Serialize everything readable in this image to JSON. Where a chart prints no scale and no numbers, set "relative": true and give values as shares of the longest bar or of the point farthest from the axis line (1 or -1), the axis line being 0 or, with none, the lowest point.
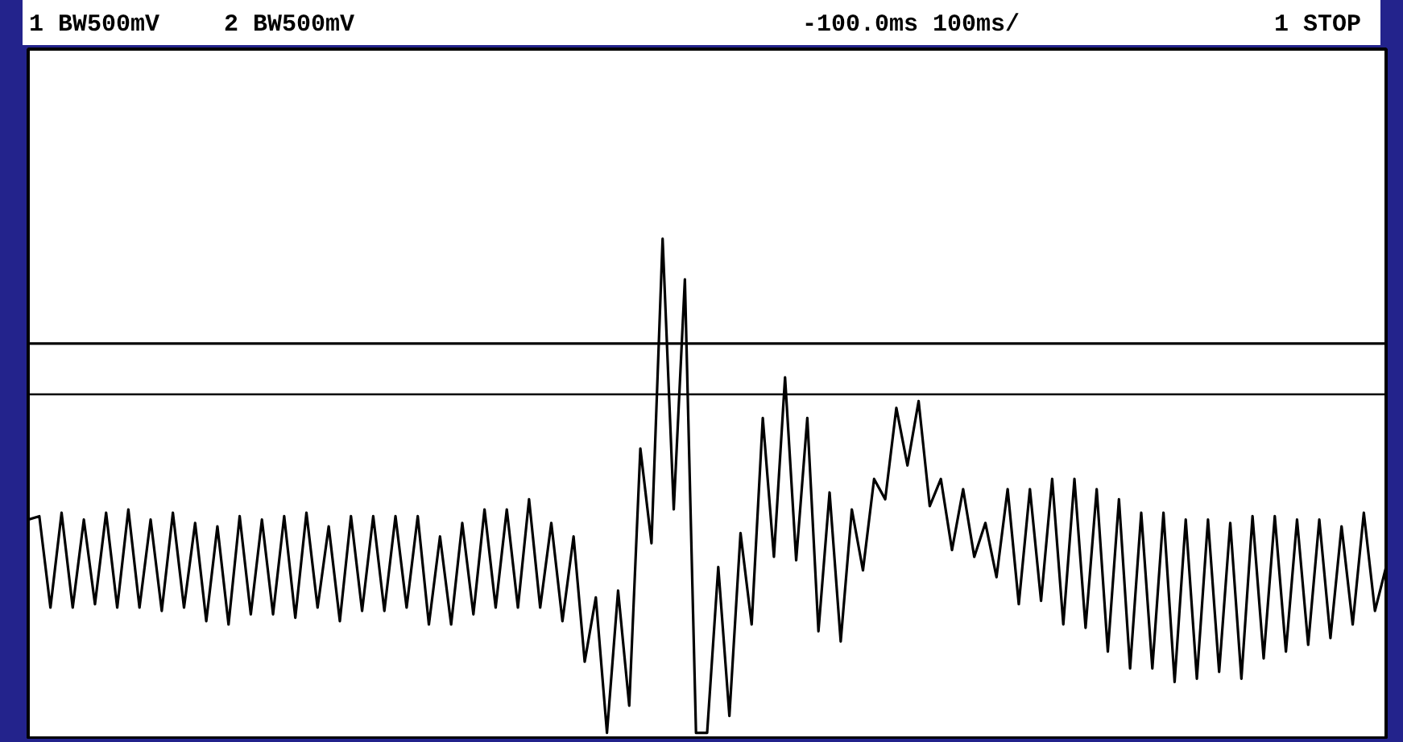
{
  "chart_data": {
    "type": "line",
    "relative": true,
    "tick_labels": false,
    "marker": "none",
    "line_style": "solid",
    "annotations": [
      "1 BW500mV",
      "2 BW500mV",
      "-100.0ms 100ms/",
      "1 STOP"
    ],
    "categories": [
      null,
      null,
      null,
      null,
      null,
      null,
      null,
      null,
      null,
      null,
      null,
      null,
      null,
      null,
      null,
      null,
      null,
      null,
      null,
      null,
      null,
      null,
      null,
      null,
      null,
      null,
      null,
      null,
      null,
      null,
      null,
      null,
      null,
      null,
      null,
      null,
      null,
      null,
      null,
      null,
      null,
      null,
      null,
      null,
      null,
      null,
      null,
      null,
      null,
      null,
      null,
      null,
      null,
      null,
      null,
      null,
      null,
      null,
      null,
      null,
      null,
      null,
      null,
      null,
      null,
      null,
      null,
      null,
      null,
      null,
      null,
      null,
      null,
      null,
      null,
      null,
      null,
      null,
      null,
      null,
      null,
      null,
      null,
      null,
      null,
      null,
      null,
      null,
      null,
      null,
      null,
      null,
      null,
      null,
      null,
      null,
      null,
      null,
      null,
      null,
      null,
      null,
      null,
      null,
      null,
      null,
      null,
      null,
      null,
      null,
      null,
      null,
      null,
      null,
      null,
      null,
      null,
      null,
      null,
      null,
      null,
      null,
      null
    ],
    "series": [
      {
        "color": "#000000",
        "values": [
          -0.37,
          -0.36,
          -0.63,
          -0.35,
          -0.63,
          -0.37,
          -0.62,
          -0.35,
          -0.63,
          -0.34,
          -0.63,
          -0.37,
          -0.64,
          -0.35,
          -0.63,
          -0.38,
          -0.67,
          -0.39,
          -0.68,
          -0.36,
          -0.65,
          -0.37,
          -0.65,
          -0.36,
          -0.66,
          -0.35,
          -0.63,
          -0.39,
          -0.67,
          -0.36,
          -0.64,
          -0.36,
          -0.64,
          -0.36,
          -0.63,
          -0.36,
          -0.68,
          -0.42,
          -0.68,
          -0.38,
          -0.65,
          -0.34,
          -0.63,
          -0.34,
          -0.63,
          -0.31,
          -0.63,
          -0.38,
          -0.67,
          -0.42,
          -0.79,
          -0.6,
          -1.0,
          -0.58,
          -0.92,
          -0.16,
          -0.44,
          0.46,
          -0.34,
          0.34,
          -1.0,
          -1.0,
          -0.51,
          -0.95,
          -0.41,
          -0.68,
          -0.07,
          -0.48,
          0.05,
          -0.49,
          -0.07,
          -0.7,
          -0.29,
          -0.73,
          -0.34,
          -0.52,
          -0.25,
          -0.31,
          -0.04,
          -0.21,
          -0.02,
          -0.33,
          -0.25,
          -0.46,
          -0.28,
          -0.48,
          -0.38,
          -0.54,
          -0.28,
          -0.62,
          -0.28,
          -0.61,
          -0.25,
          -0.68,
          -0.25,
          -0.69,
          -0.28,
          -0.76,
          -0.31,
          -0.81,
          -0.35,
          -0.81,
          -0.35,
          -0.85,
          -0.37,
          -0.84,
          -0.37,
          -0.82,
          -0.38,
          -0.84,
          -0.36,
          -0.78,
          -0.36,
          -0.76,
          -0.37,
          -0.74,
          -0.37,
          -0.72,
          -0.39,
          -0.68,
          -0.35,
          -0.64,
          -0.51
        ]
      },
      {
        "color": "#000000",
        "values": [
          0.15,
          0.15,
          0.15,
          0.15,
          0.15,
          0.15,
          0.15,
          0.15,
          0.15,
          0.15,
          0.15,
          0.15,
          0.15,
          0.15,
          0.15,
          0.15,
          0.15,
          0.15,
          0.15,
          0.15,
          0.15,
          0.15,
          0.15,
          0.15,
          0.15,
          0.15,
          0.15,
          0.15,
          0.15,
          0.15,
          0.15,
          0.15,
          0.15,
          0.15,
          0.15,
          0.15,
          0.15,
          0.15,
          0.15,
          0.15,
          0.15,
          0.15,
          0.15,
          0.15,
          0.15,
          0.15,
          0.15,
          0.15,
          0.15,
          0.15,
          0.15,
          0.15,
          0.15,
          0.15,
          0.15,
          0.15,
          0.15,
          0.15,
          0.15,
          0.15,
          0.15,
          0.15,
          0.15,
          0.15,
          0.15,
          0.15,
          0.15,
          0.15,
          0.15,
          0.15,
          0.15,
          0.15,
          0.15,
          0.15,
          0.15,
          0.15,
          0.15,
          0.15,
          0.15,
          0.15,
          0.15,
          0.15,
          0.15,
          0.15,
          0.15,
          0.15,
          0.15,
          0.15,
          0.15,
          0.15,
          0.15,
          0.15,
          0.15,
          0.15,
          0.15,
          0.15,
          0.15,
          0.15,
          0.15,
          0.15,
          0.15,
          0.15,
          0.15,
          0.15,
          0.15,
          0.15,
          0.15,
          0.15,
          0.15,
          0.15,
          0.15,
          0.15,
          0.15,
          0.15,
          0.15,
          0.15,
          0.15,
          0.15,
          0.15,
          0.15,
          0.15,
          0.15,
          0.15
        ]
      }
    ]
  }
}
